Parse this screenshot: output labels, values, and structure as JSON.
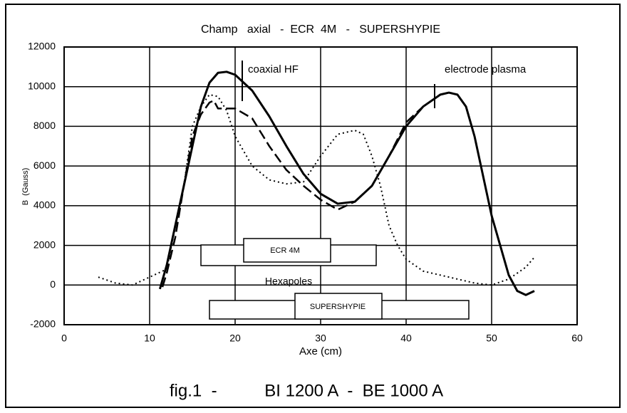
{
  "chart_data": {
    "type": "line",
    "title": "Champ   axial   -  ECR  4M   -   SUPERSHYPIE",
    "x_label": "Axe (cm)",
    "y_label": "B  (Gauss)",
    "caption": "fig.1  -          BI 1200 A  -  BE 1000 A",
    "annotations": [
      "coaxial HF",
      "electrode plasma",
      "Hexapoles",
      "ECR 4M",
      "SUPERSHYPIE"
    ],
    "xlim": [
      0,
      60
    ],
    "xticks": [
      0,
      10,
      20,
      30,
      40,
      50,
      60
    ],
    "ylim": [
      -2000,
      12000
    ],
    "yticks": [
      -2000,
      0,
      2000,
      4000,
      6000,
      8000,
      10000,
      12000
    ],
    "grid": true,
    "series": [
      {
        "color": "#000000",
        "style": "solid",
        "x": [
          11.2,
          12,
          13,
          14,
          15,
          16,
          17,
          18,
          19,
          20,
          22,
          24,
          26,
          28,
          30,
          32,
          34,
          36,
          38,
          40,
          42,
          44,
          45,
          46,
          47,
          48,
          49,
          50,
          51,
          52,
          53,
          54,
          55
        ],
        "values": [
          -200,
          1000,
          3000,
          5000,
          7000,
          9000,
          10200,
          10700,
          10750,
          10600,
          9800,
          8500,
          7000,
          5600,
          4600,
          4100,
          4200,
          5000,
          6500,
          8000,
          9000,
          9600,
          9700,
          9600,
          9000,
          7500,
          5500,
          3500,
          2000,
          500,
          -300,
          -500,
          -300
        ]
      },
      {
        "color": "#000000",
        "style": "dotted",
        "x": [
          4,
          6,
          8,
          10,
          12,
          14,
          15,
          16,
          17,
          18,
          19,
          20,
          22,
          24,
          26,
          28,
          30,
          32,
          34,
          35,
          36,
          37,
          38,
          39,
          40,
          42,
          45,
          48,
          50,
          52,
          54,
          55
        ],
        "values": [
          400,
          100,
          0,
          400,
          800,
          5000,
          8000,
          9000,
          9600,
          9500,
          8800,
          7500,
          6000,
          5300,
          5100,
          5200,
          6500,
          7600,
          7800,
          7600,
          6500,
          5000,
          3000,
          2000,
          1300,
          700,
          400,
          100,
          0,
          300,
          900,
          1400
        ]
      },
      {
        "color": "#000000",
        "style": "dashed",
        "x": [
          11.5,
          12,
          13,
          14,
          15,
          16,
          17,
          17.5,
          18,
          20,
          22,
          24,
          26,
          28,
          30,
          32,
          34,
          36,
          38,
          40,
          42,
          44,
          45
        ],
        "values": [
          -100,
          600,
          2400,
          5000,
          7500,
          8600,
          9200,
          9300,
          8900,
          8900,
          8400,
          7000,
          5800,
          5000,
          4300,
          3800,
          4200,
          5000,
          6500,
          8200,
          9000,
          9600,
          9700
        ]
      }
    ]
  }
}
